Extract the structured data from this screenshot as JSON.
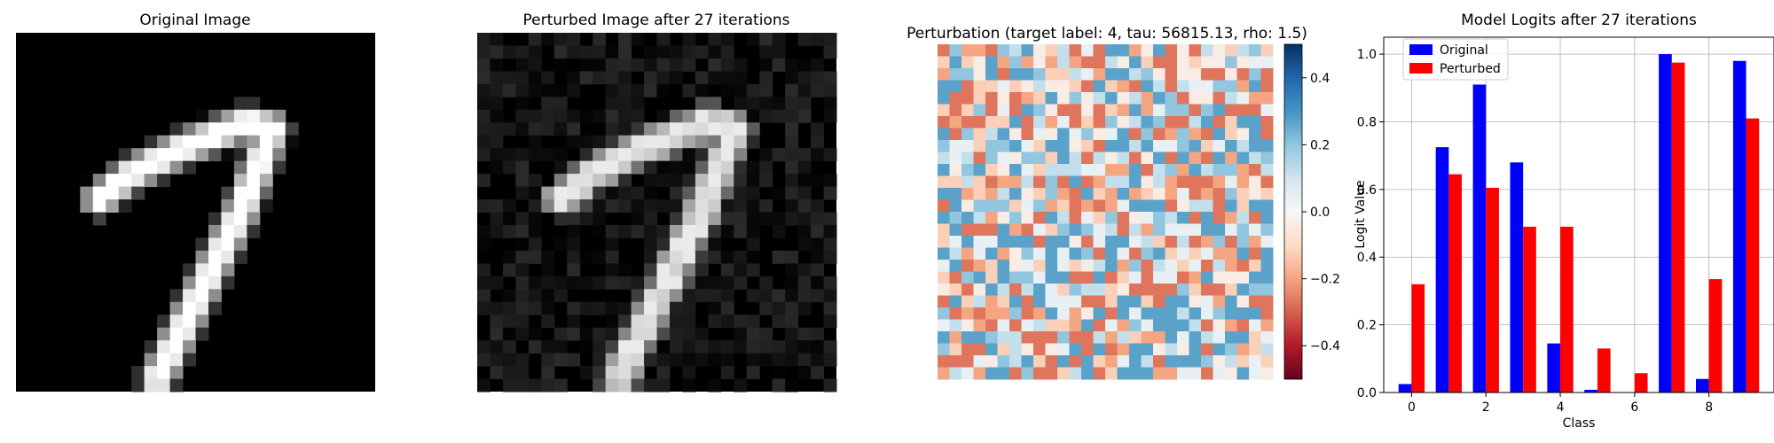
{
  "panels": {
    "original": {
      "title": "Original Image"
    },
    "perturbed": {
      "title": "Perturbed Image after 27 iterations"
    },
    "perturbation": {
      "title": "Perturbation (target label: 4, tau: 56815.13, rho: 1.5)"
    }
  },
  "colormaps": {
    "image": "gray",
    "perturbation": "RdBu"
  },
  "colorbar": {
    "range": [
      -0.5,
      0.5
    ],
    "ticks": [
      0.4,
      0.2,
      0.0,
      -0.2,
      -0.4
    ],
    "tick_labels": [
      "0.4",
      "0.2",
      "0.0",
      "−0.2",
      "−0.4"
    ]
  },
  "chart_data": {
    "type": "bar",
    "title": "Model Logits after 27 iterations",
    "xlabel": "Class",
    "ylabel": "Logit Value",
    "categories": [
      0,
      1,
      2,
      3,
      4,
      5,
      6,
      7,
      8,
      9
    ],
    "xticks": [
      "0",
      "2",
      "4",
      "6",
      "8"
    ],
    "yticks": [
      "0.0",
      "0.2",
      "0.4",
      "0.6",
      "0.8",
      "1.0"
    ],
    "ylim": [
      0,
      1.05
    ],
    "grid": true,
    "legend_position": "top-left",
    "series": [
      {
        "name": "Original",
        "color": "#0000ff",
        "values": [
          0.025,
          0.725,
          0.91,
          0.68,
          0.145,
          0.008,
          0.0,
          1.0,
          0.04,
          0.98
        ]
      },
      {
        "name": "Perturbed",
        "color": "#ff0000",
        "values": [
          0.32,
          0.645,
          0.605,
          0.49,
          0.49,
          0.13,
          0.057,
          0.975,
          0.335,
          0.81
        ]
      }
    ]
  }
}
